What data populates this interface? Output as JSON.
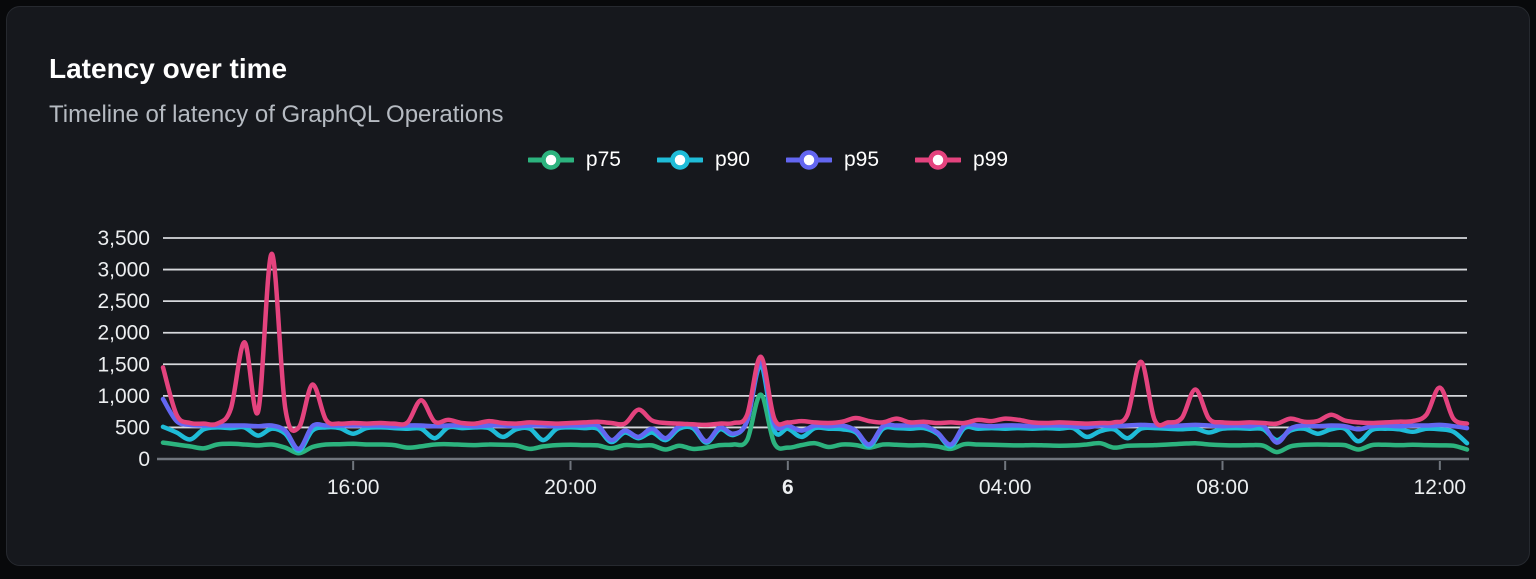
{
  "header": {
    "title": "Latency over time",
    "subtitle": "Timeline of latency of GraphQL Operations"
  },
  "colors": {
    "card_background": "#16181d",
    "outer_background": "#08090b",
    "card_border": "#26292f",
    "gridline": "#d6d8dc",
    "axis_line": "#70757d",
    "axis_label": "#eceef0",
    "title": "#ffffff",
    "subtitle": "#b6bbc2"
  },
  "chart_data": {
    "type": "line",
    "title": "Latency over time",
    "subtitle": "Timeline of latency of GraphQL Operations",
    "legend_position": "top-center",
    "grid": "horizontal",
    "span_hours": 24,
    "sample_interval_hours": 0.25,
    "x_axis": {
      "ticks": [
        {
          "label": "16:00",
          "hours": 3.5,
          "bold": false
        },
        {
          "label": "20:00",
          "hours": 7.5,
          "bold": false
        },
        {
          "label": "6",
          "hours": 11.5,
          "bold": true
        },
        {
          "label": "04:00",
          "hours": 15.5,
          "bold": false
        },
        {
          "label": "08:00",
          "hours": 19.5,
          "bold": false
        },
        {
          "label": "12:00",
          "hours": 23.5,
          "bold": false
        }
      ]
    },
    "y_axis": {
      "min": 0,
      "max": 3500,
      "tick_step": 500,
      "tick_labels": [
        "0",
        "500",
        "1,000",
        "1,500",
        "2,000",
        "2,500",
        "3,000",
        "3,500"
      ]
    },
    "series": [
      {
        "name": "p75",
        "color": "#2cb37e",
        "values": [
          260,
          230,
          200,
          170,
          230,
          240,
          230,
          215,
          230,
          180,
          90,
          190,
          230,
          235,
          240,
          230,
          230,
          220,
          180,
          200,
          230,
          235,
          225,
          220,
          230,
          225,
          215,
          160,
          200,
          220,
          225,
          220,
          215,
          170,
          220,
          210,
          215,
          150,
          210,
          160,
          180,
          220,
          230,
          300,
          1020,
          250,
          180,
          220,
          250,
          190,
          230,
          220,
          180,
          230,
          225,
          215,
          220,
          200,
          160,
          235,
          230,
          225,
          220,
          215,
          220,
          215,
          210,
          215,
          230,
          250,
          180,
          210,
          215,
          220,
          230,
          240,
          250,
          230,
          220,
          215,
          220,
          210,
          110,
          200,
          225,
          230,
          225,
          220,
          150,
          220,
          225,
          220,
          225,
          220,
          215,
          210,
          150
        ]
      },
      {
        "name": "p90",
        "color": "#1fbcd8",
        "values": [
          510,
          420,
          310,
          470,
          500,
          490,
          500,
          370,
          480,
          400,
          130,
          450,
          500,
          490,
          400,
          490,
          500,
          490,
          480,
          480,
          330,
          500,
          490,
          500,
          490,
          350,
          470,
          480,
          300,
          480,
          500,
          490,
          480,
          270,
          420,
          330,
          420,
          300,
          480,
          490,
          260,
          470,
          380,
          600,
          1480,
          450,
          480,
          350,
          490,
          480,
          470,
          420,
          200,
          480,
          490,
          480,
          490,
          400,
          200,
          490,
          480,
          490,
          480,
          490,
          480,
          490,
          480,
          490,
          350,
          440,
          470,
          330,
          480,
          490,
          480,
          470,
          480,
          420,
          480,
          490,
          480,
          470,
          300,
          450,
          480,
          400,
          470,
          480,
          280,
          460,
          480,
          470,
          430,
          480,
          470,
          430,
          250
        ]
      },
      {
        "name": "p95",
        "color": "#6366f1",
        "values": [
          950,
          600,
          540,
          530,
          530,
          530,
          530,
          520,
          530,
          450,
          160,
          520,
          530,
          530,
          530,
          530,
          530,
          520,
          530,
          530,
          520,
          530,
          530,
          520,
          530,
          530,
          520,
          530,
          530,
          520,
          530,
          530,
          530,
          300,
          450,
          350,
          480,
          330,
          520,
          530,
          280,
          500,
          400,
          600,
          1550,
          560,
          530,
          450,
          530,
          520,
          530,
          450,
          230,
          520,
          530,
          530,
          530,
          420,
          230,
          530,
          530,
          520,
          530,
          530,
          520,
          530,
          530,
          520,
          500,
          530,
          520,
          530,
          540,
          530,
          520,
          530,
          540,
          530,
          520,
          530,
          520,
          530,
          260,
          480,
          530,
          520,
          530,
          520,
          470,
          520,
          530,
          520,
          530,
          530,
          540,
          520,
          490
        ]
      },
      {
        "name": "p99",
        "color": "#e4437e",
        "values": [
          1450,
          700,
          570,
          560,
          560,
          800,
          1850,
          750,
          3250,
          800,
          500,
          1180,
          620,
          560,
          570,
          560,
          570,
          560,
          580,
          930,
          590,
          620,
          570,
          560,
          600,
          570,
          560,
          580,
          570,
          560,
          570,
          580,
          590,
          570,
          560,
          780,
          610,
          570,
          560,
          550,
          540,
          560,
          570,
          700,
          1620,
          640,
          580,
          600,
          580,
          570,
          590,
          650,
          600,
          580,
          640,
          580,
          590,
          570,
          580,
          570,
          620,
          600,
          640,
          620,
          580,
          570,
          580,
          570,
          560,
          570,
          580,
          700,
          1540,
          620,
          580,
          650,
          1100,
          640,
          580,
          570,
          580,
          570,
          560,
          640,
          590,
          600,
          700,
          610,
          580,
          570,
          580,
          590,
          600,
          700,
          1130,
          640,
          560
        ]
      }
    ]
  }
}
